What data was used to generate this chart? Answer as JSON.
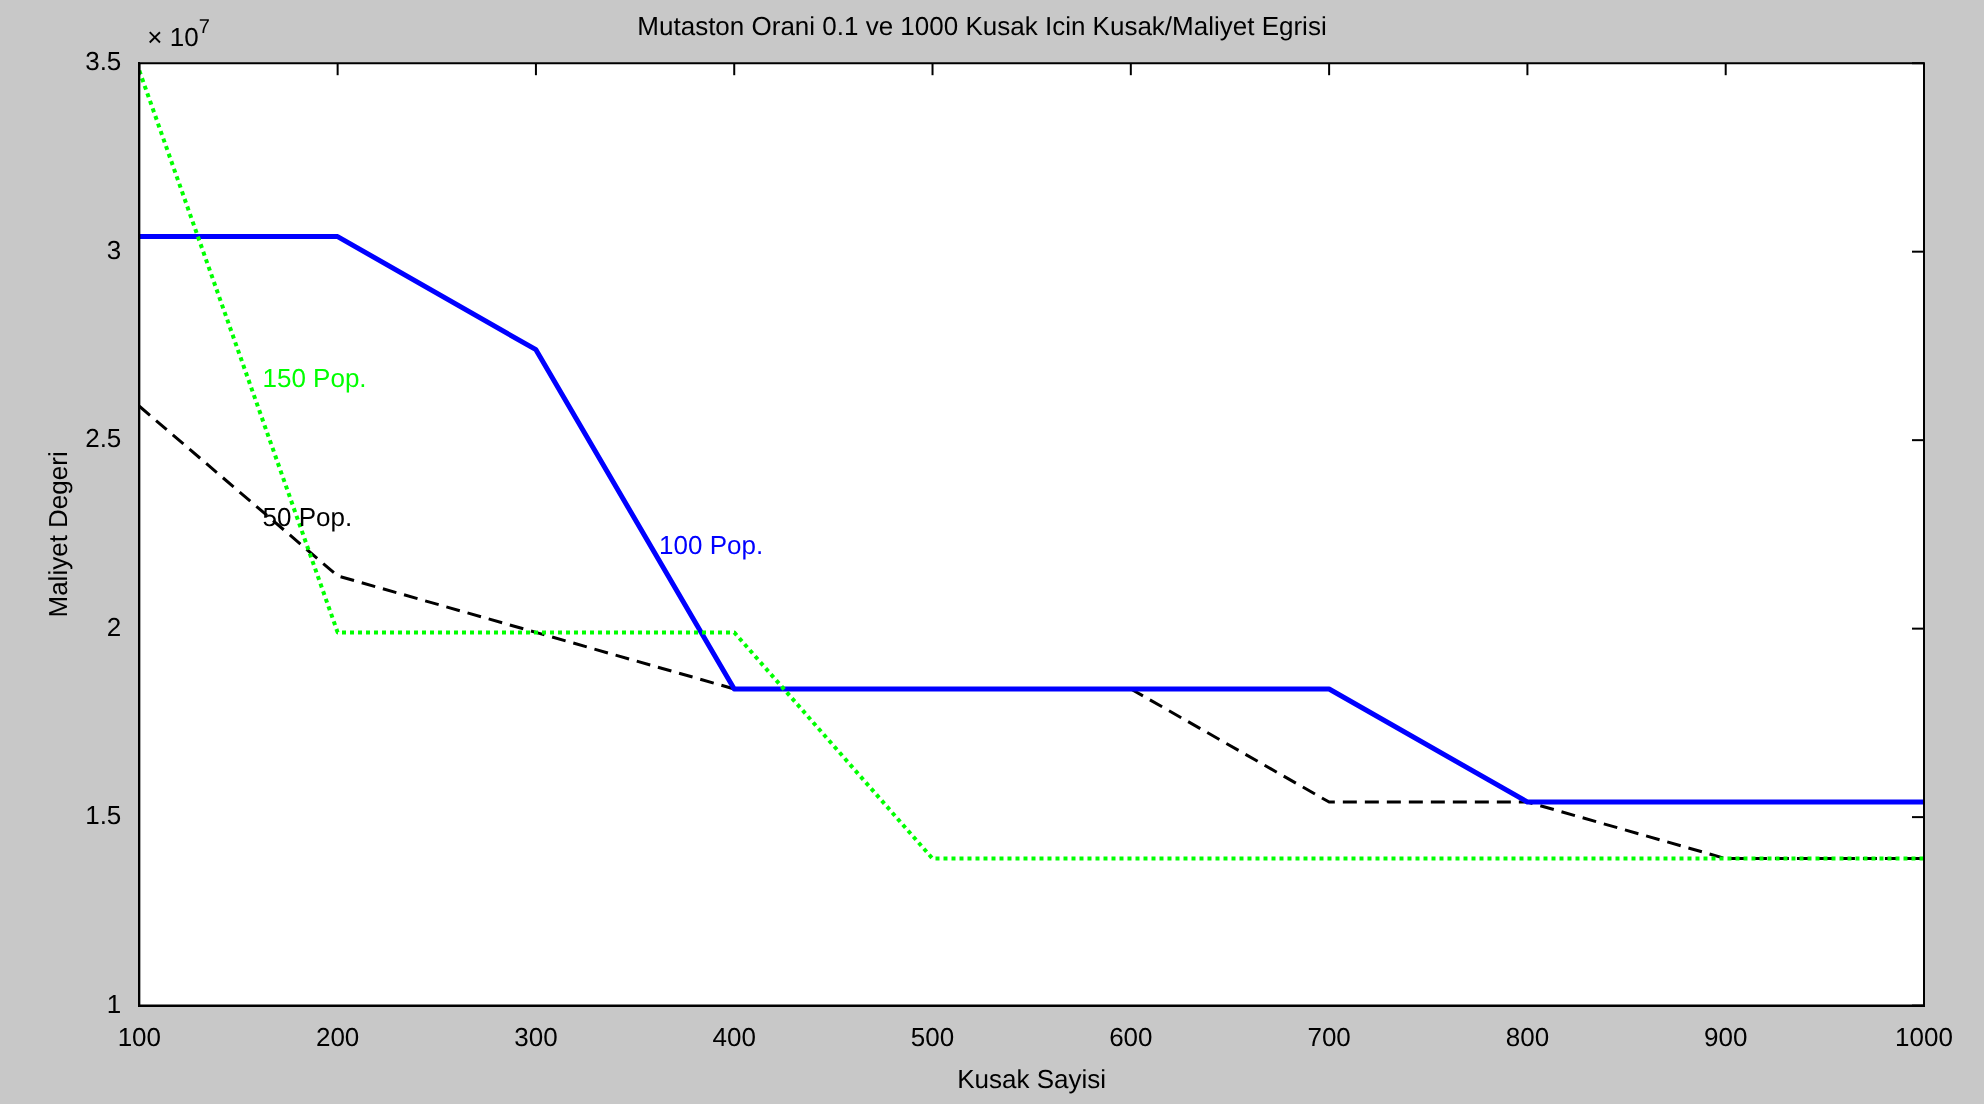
{
  "chart_data": {
    "type": "line",
    "title": "Mutaston Orani 0.1 ve 1000 Kusak Icin Kusak/Maliyet Egrisi",
    "xlabel": "Kusak Sayisi",
    "ylabel": "Maliyet Degeri",
    "annotations": [
      "× 10$^{7}$"
    ],
    "x": [
      100,
      200,
      300,
      400,
      500,
      600,
      700,
      800,
      900,
      1000
    ],
    "series": [
      {
        "name": "150 Pop.",
        "color": "#00ff00",
        "line_style": "dotted",
        "values": [
          3.48,
          1.99,
          1.99,
          1.99,
          1.39,
          1.39,
          1.39,
          1.39,
          1.39,
          1.39
        ]
      },
      {
        "name": "100 Pop.",
        "color": "#0000ff",
        "line_style": "solid",
        "values": [
          3.04,
          3.04,
          2.74,
          1.84,
          1.84,
          1.84,
          1.84,
          1.54,
          1.54,
          1.54
        ]
      },
      {
        "name": "50 Pop.",
        "color": "#000000",
        "line_style": "dashed",
        "values": [
          2.59,
          2.14,
          1.99,
          1.84,
          null,
          1.84,
          1.54,
          1.54,
          1.39,
          1.39
        ]
      }
    ],
    "xlim": [
      100,
      1000
    ],
    "xticks": [
      100,
      200,
      300,
      400,
      500,
      600,
      700,
      800,
      900,
      1000
    ],
    "ylim": [
      1,
      3.5
    ],
    "yticks": [
      1,
      1.5,
      2,
      2.5,
      3,
      3.5
    ],
    "grid": false,
    "legend": false,
    "marker": "none"
  }
}
